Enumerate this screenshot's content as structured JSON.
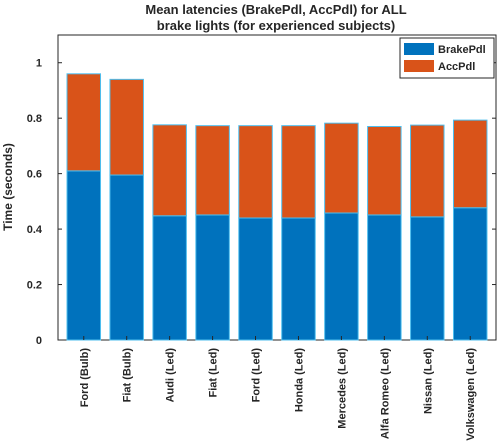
{
  "chart_data": {
    "type": "bar",
    "stacked": true,
    "title": [
      "Mean latencies (BrakePdl, AccPdl) for ALL",
      "brake lights (for experienced subjects)"
    ],
    "xlabel": "",
    "ylabel": "Time (seconds)",
    "ylim": [
      0,
      1.1
    ],
    "yticks": [
      0,
      0.2,
      0.4,
      0.6,
      0.8,
      1
    ],
    "ytick_labels": [
      "0",
      "0.2",
      "0.4",
      "0.6",
      "0.8",
      "1"
    ],
    "categories": [
      "Ford (Bulb)",
      "Fiat (Bulb)",
      "Audi (Led)",
      "Fiat (Led)",
      "Ford (Led)",
      "Honda (Led)",
      "Mercedes (Led)",
      "Alfa Romeo (Led)",
      "Nissan (Led)",
      "Volkswagen (Led)"
    ],
    "series": [
      {
        "name": "BrakePdl",
        "color": "#0072bd",
        "values": [
          0.61,
          0.595,
          0.448,
          0.451,
          0.44,
          0.44,
          0.458,
          0.451,
          0.444,
          0.477
        ]
      },
      {
        "name": "AccPdl",
        "color": "#d95319",
        "values": [
          0.35,
          0.345,
          0.328,
          0.322,
          0.333,
          0.333,
          0.324,
          0.319,
          0.331,
          0.316
        ]
      }
    ],
    "edge_color": "#4dbeee",
    "legend_position": "top-right",
    "grid": false
  }
}
